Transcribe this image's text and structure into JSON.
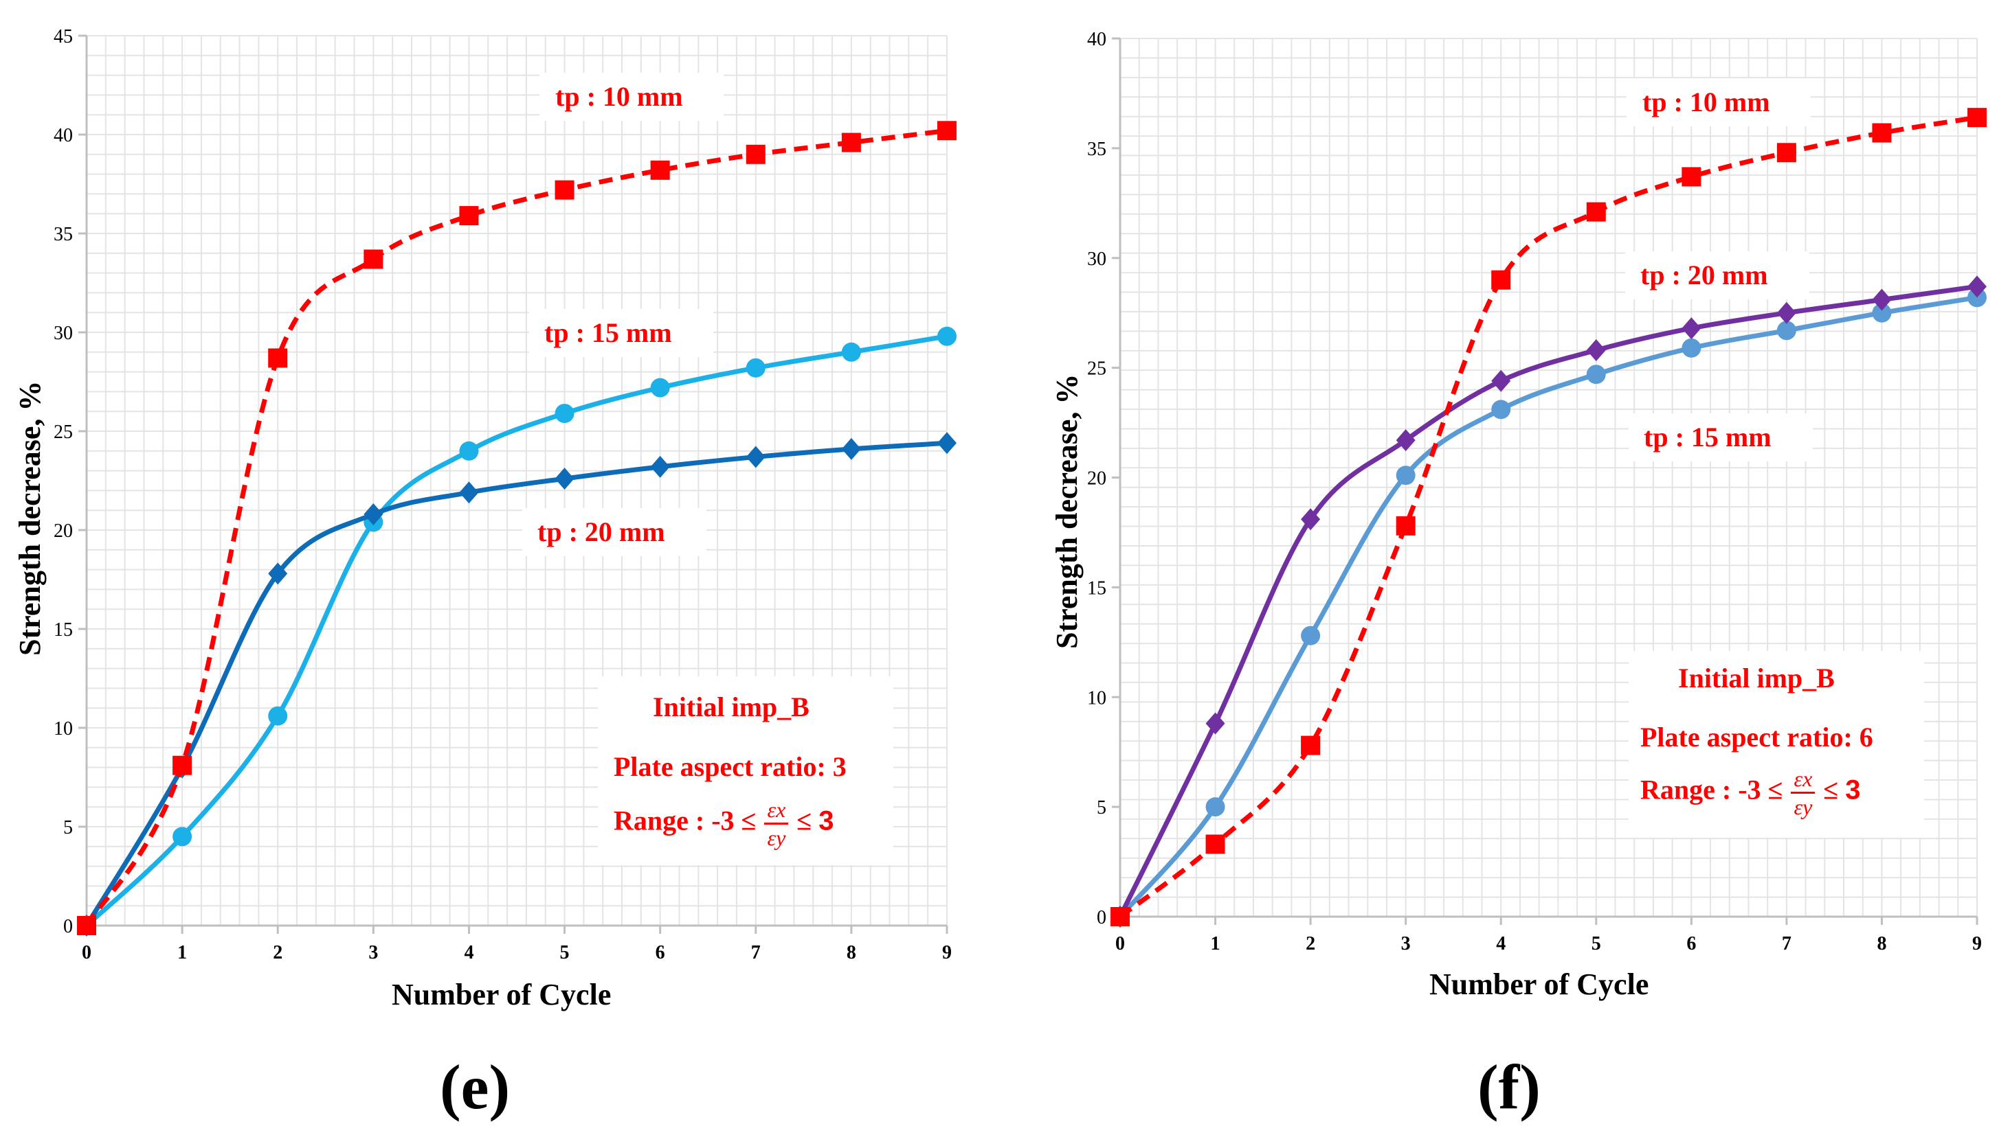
{
  "chart_data": [
    {
      "type": "line",
      "panel_label": "(e)",
      "xlabel": "Number of Cycle",
      "ylabel": "Strength decrease, %",
      "x": [
        0,
        1,
        2,
        3,
        4,
        5,
        6,
        7,
        8,
        9
      ],
      "xlim": [
        0,
        9
      ],
      "ylim": [
        0,
        45
      ],
      "ytick_step": 5,
      "grid": true,
      "series": [
        {
          "name": "tp : 10 mm",
          "color": "#ff0000",
          "dashed": true,
          "marker": "square",
          "values": [
            0,
            8.1,
            28.7,
            33.7,
            35.9,
            37.2,
            38.2,
            39.0,
            39.6,
            40.2
          ]
        },
        {
          "name": "tp : 15 mm",
          "color": "#1cb0e8",
          "dashed": false,
          "marker": "circle",
          "values": [
            0,
            4.5,
            10.6,
            20.4,
            24.0,
            25.9,
            27.2,
            28.2,
            29.0,
            29.8
          ]
        },
        {
          "name": "tp : 20 mm",
          "color": "#0d6bb8",
          "dashed": false,
          "marker": "diamond",
          "values": [
            0,
            8.0,
            17.8,
            20.8,
            21.9,
            22.6,
            23.2,
            23.7,
            24.1,
            24.4
          ]
        }
      ],
      "info": {
        "line1": "Initial imp_B",
        "line2": "Plate aspect ratio: 3",
        "range_prefix": "Range : -3 ≤",
        "frac_num": "εx",
        "frac_den": "εy",
        "range_suffix_sym": "≤",
        "range_suffix_num": "3"
      }
    },
    {
      "type": "line",
      "panel_label": "(f)",
      "xlabel": "Number of Cycle",
      "ylabel": "Strength decrease, %",
      "x": [
        0,
        1,
        2,
        3,
        4,
        5,
        6,
        7,
        8,
        9
      ],
      "xlim": [
        0,
        9
      ],
      "ylim": [
        0,
        40
      ],
      "ytick_step": 5,
      "grid": true,
      "series": [
        {
          "name": "tp : 10 mm",
          "color": "#ff0000",
          "dashed": true,
          "marker": "square",
          "values": [
            0,
            3.3,
            7.8,
            17.8,
            29.0,
            32.1,
            33.7,
            34.8,
            35.7,
            36.4
          ]
        },
        {
          "name": "tp : 15 mm",
          "color": "#5b9bd5",
          "dashed": false,
          "marker": "circle",
          "values": [
            0,
            5.0,
            12.8,
            20.1,
            23.1,
            24.7,
            25.9,
            26.7,
            27.5,
            28.2
          ]
        },
        {
          "name": "tp : 20 mm",
          "color": "#7030a0",
          "dashed": false,
          "marker": "diamond",
          "values": [
            0,
            8.8,
            18.1,
            21.7,
            24.4,
            25.8,
            26.8,
            27.5,
            28.1,
            28.7
          ]
        }
      ],
      "info": {
        "line1": "Initial imp_B",
        "line2": "Plate aspect ratio: 6",
        "range_prefix": "Range : -3 ≤",
        "frac_num": "εx",
        "frac_den": "εy",
        "range_suffix_sym": "≤",
        "range_suffix_num": "3"
      }
    }
  ]
}
